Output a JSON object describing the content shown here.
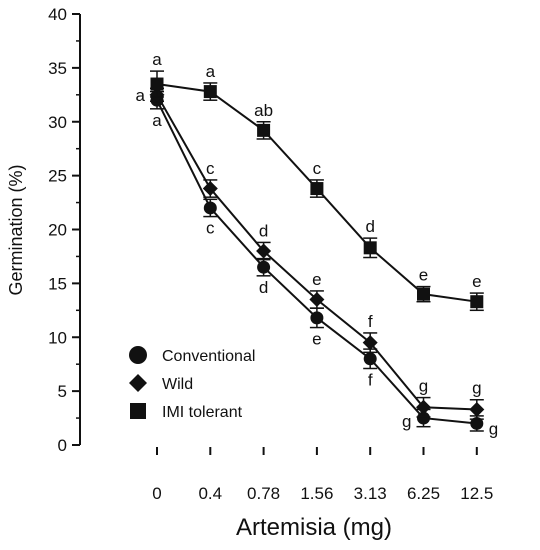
{
  "chart_data": {
    "type": "line",
    "xlabel": "Artemisia (mg)",
    "ylabel": "Germination (%)",
    "categories": [
      "0",
      "0.4",
      "0.78",
      "1.56",
      "3.13",
      "6.25",
      "12.5"
    ],
    "ylim": [
      0,
      40
    ],
    "yticks": [
      0,
      5,
      10,
      15,
      20,
      25,
      30,
      35,
      40
    ],
    "grid": false,
    "legend_position": "bottom-left",
    "series": [
      {
        "name": "Conventional",
        "marker": "circle",
        "values": [
          32.0,
          22.0,
          16.5,
          11.8,
          8.0,
          2.5,
          2.0
        ],
        "errors": [
          0.8,
          0.8,
          0.8,
          0.9,
          0.9,
          0.8,
          0.7
        ],
        "labels": [
          "a",
          "c",
          "d",
          "e",
          "f",
          "g",
          "g"
        ],
        "label_side": [
          "below",
          "below",
          "below",
          "below",
          "below",
          "left",
          "right"
        ]
      },
      {
        "name": "Wild",
        "marker": "diamond",
        "values": [
          32.5,
          23.8,
          18.0,
          13.5,
          9.5,
          3.5,
          3.3
        ],
        "errors": [
          0.6,
          0.8,
          0.8,
          0.8,
          0.9,
          0.9,
          0.9
        ],
        "labels": [
          "a",
          "c",
          "d",
          "e",
          "f",
          "g",
          "g"
        ],
        "label_side": [
          "left",
          "above",
          "above",
          "above",
          "above",
          "above",
          "above"
        ]
      },
      {
        "name": "IMI tolerant",
        "marker": "square",
        "values": [
          33.5,
          32.8,
          29.2,
          23.8,
          18.3,
          14.0,
          13.3
        ],
        "errors": [
          1.2,
          0.8,
          0.8,
          0.8,
          0.9,
          0.7,
          0.8
        ],
        "labels": [
          "a",
          "a",
          "ab",
          "c",
          "d",
          "e",
          "e"
        ],
        "label_side": [
          "above",
          "above",
          "above",
          "above",
          "above",
          "above",
          "above"
        ]
      }
    ],
    "colors": {
      "ink": "#111111"
    }
  }
}
